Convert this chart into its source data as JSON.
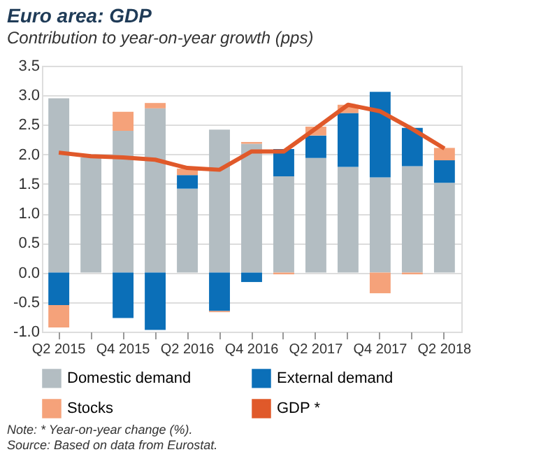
{
  "chart_data": {
    "type": "bar",
    "stacked": true,
    "title": "Euro area: GDP",
    "subtitle": "Contribution to year-on-year growth (pps)",
    "categories": [
      "Q2 2015",
      null,
      "Q4 2015",
      null,
      "Q2 2016",
      null,
      "Q4 2016",
      null,
      "Q2 2017",
      null,
      "Q4 2017",
      null,
      "Q2 2018"
    ],
    "series": [
      {
        "name": "Domestic demand",
        "color": "#b3bdc2",
        "values": [
          2.95,
          1.95,
          2.4,
          2.78,
          1.42,
          2.42,
          2.18,
          1.63,
          1.94,
          1.79,
          1.61,
          1.8,
          1.52
        ]
      },
      {
        "name": "External demand",
        "color": "#0b6fb8",
        "values": [
          -0.55,
          null,
          -0.77,
          -0.97,
          0.23,
          -0.65,
          -0.16,
          0.46,
          0.38,
          0.91,
          1.45,
          0.65,
          0.38
        ]
      },
      {
        "name": "Stocks",
        "color": "#f5a27a",
        "values": [
          -0.38,
          null,
          0.32,
          0.09,
          0.11,
          -0.02,
          0.03,
          -0.03,
          0.15,
          0.14,
          -0.35,
          -0.03,
          0.21
        ]
      },
      {
        "name": "GDP *",
        "color": "#e0592a",
        "type": "line",
        "values": [
          2.03,
          1.97,
          1.95,
          1.91,
          1.77,
          1.74,
          2.05,
          2.05,
          2.44,
          2.84,
          2.73,
          2.43,
          2.1
        ]
      }
    ],
    "ylim": [
      -1.0,
      3.5
    ],
    "yticks": [
      {
        "value": -1.0,
        "label": "-1.0"
      },
      {
        "value": -0.5,
        "label": "-0.5"
      },
      {
        "value": 0.0,
        "label": "0.0"
      },
      {
        "value": 0.5,
        "label": "0.5"
      },
      {
        "value": 1.0,
        "label": "1.0"
      },
      {
        "value": 1.5,
        "label": "1.5"
      },
      {
        "value": 2.0,
        "label": "2.0"
      },
      {
        "value": 2.5,
        "label": "2.5"
      },
      {
        "value": 3.0,
        "label": "3.0"
      },
      {
        "value": 3.5,
        "label": "3.5"
      }
    ],
    "grid": "y",
    "legend": "bottom",
    "marker": "none",
    "line_style": "solid",
    "annotations": [
      "Note: * Year-on-year change (%).",
      "Source: Based on data from Eurostat."
    ]
  }
}
